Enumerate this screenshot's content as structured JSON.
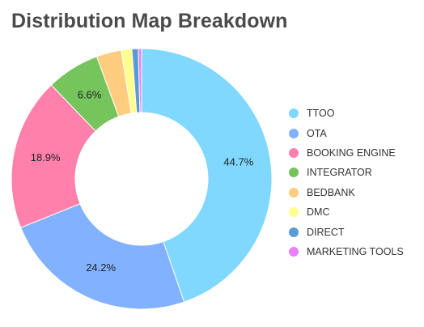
{
  "title": "Distribution Map Breakdown",
  "chart_data": {
    "type": "pie",
    "donut": true,
    "title": "Distribution Map Breakdown",
    "legend_position": "right",
    "categories": [
      "TTOO",
      "OTA",
      "BOOKING ENGINE",
      "INTEGRATOR",
      "BEDBANK",
      "DMC",
      "DIRECT",
      "MARKETING TOOLS"
    ],
    "values": [
      44.7,
      24.2,
      18.9,
      6.6,
      3.1,
      1.3,
      0.8,
      0.4
    ],
    "labels": [
      "44.7%",
      "24.2%",
      "18.9%",
      "6.6%",
      "",
      "",
      "",
      ""
    ],
    "colors": [
      "#80d8ff",
      "#82b1ff",
      "#ff80ab",
      "#76c45c",
      "#ffcc80",
      "#ffff8d",
      "#5b9bd5",
      "#ea80fc"
    ]
  }
}
